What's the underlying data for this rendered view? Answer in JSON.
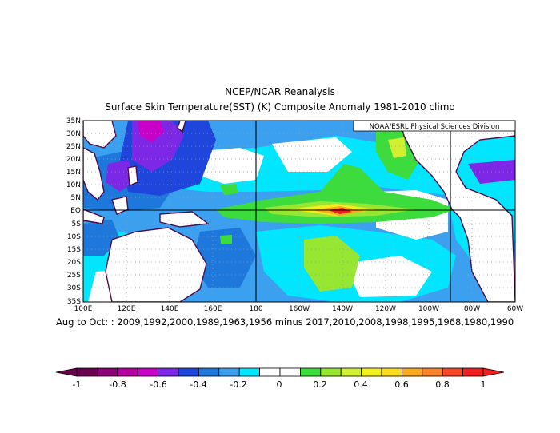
{
  "title": "NCEP/NCAR Reanalysis",
  "subtitle": "Surface Skin Temperature(SST) (K) Composite Anomaly 1981-2010 climo",
  "credit": "NOAA/ESRL Physical Sciences Division",
  "caption": "Aug to Oct: : 2009,1992,2000,1989,1963,1956 minus 2017,2010,2008,1998,1995,1968,1980,1990",
  "map": {
    "lon_range": [
      100,
      300
    ],
    "lat_range": [
      -35,
      35
    ],
    "lat_ticks": [
      "35N",
      "30N",
      "25N",
      "20N",
      "15N",
      "10N",
      "5N",
      "EQ",
      "5S",
      "10S",
      "15S",
      "20S",
      "25S",
      "30S",
      "35S"
    ],
    "lon_ticks": [
      "100E",
      "120E",
      "140E",
      "160E",
      "180",
      "160W",
      "140W",
      "120W",
      "100W",
      "80W",
      "60W"
    ],
    "reference_lines": {
      "lon": [
        180,
        270
      ],
      "lat": [
        0
      ]
    }
  },
  "colorbar": {
    "labels": [
      "-1",
      "-0.8",
      "-0.6",
      "-0.4",
      "-0.2",
      "0",
      "0.2",
      "0.4",
      "0.6",
      "0.8",
      "1"
    ],
    "colors": [
      "#6a0050",
      "#8c0078",
      "#b400a0",
      "#c800c8",
      "#7d28e6",
      "#1e46dc",
      "#1e78dc",
      "#3ca0f0",
      "#00e6ff",
      "#ffffff",
      "#ffffff",
      "#3cdc3c",
      "#96e632",
      "#d2f032",
      "#f0f01e",
      "#fadc1e",
      "#faaa1e",
      "#fa8228",
      "#fa4628",
      "#f01e1e"
    ]
  }
}
